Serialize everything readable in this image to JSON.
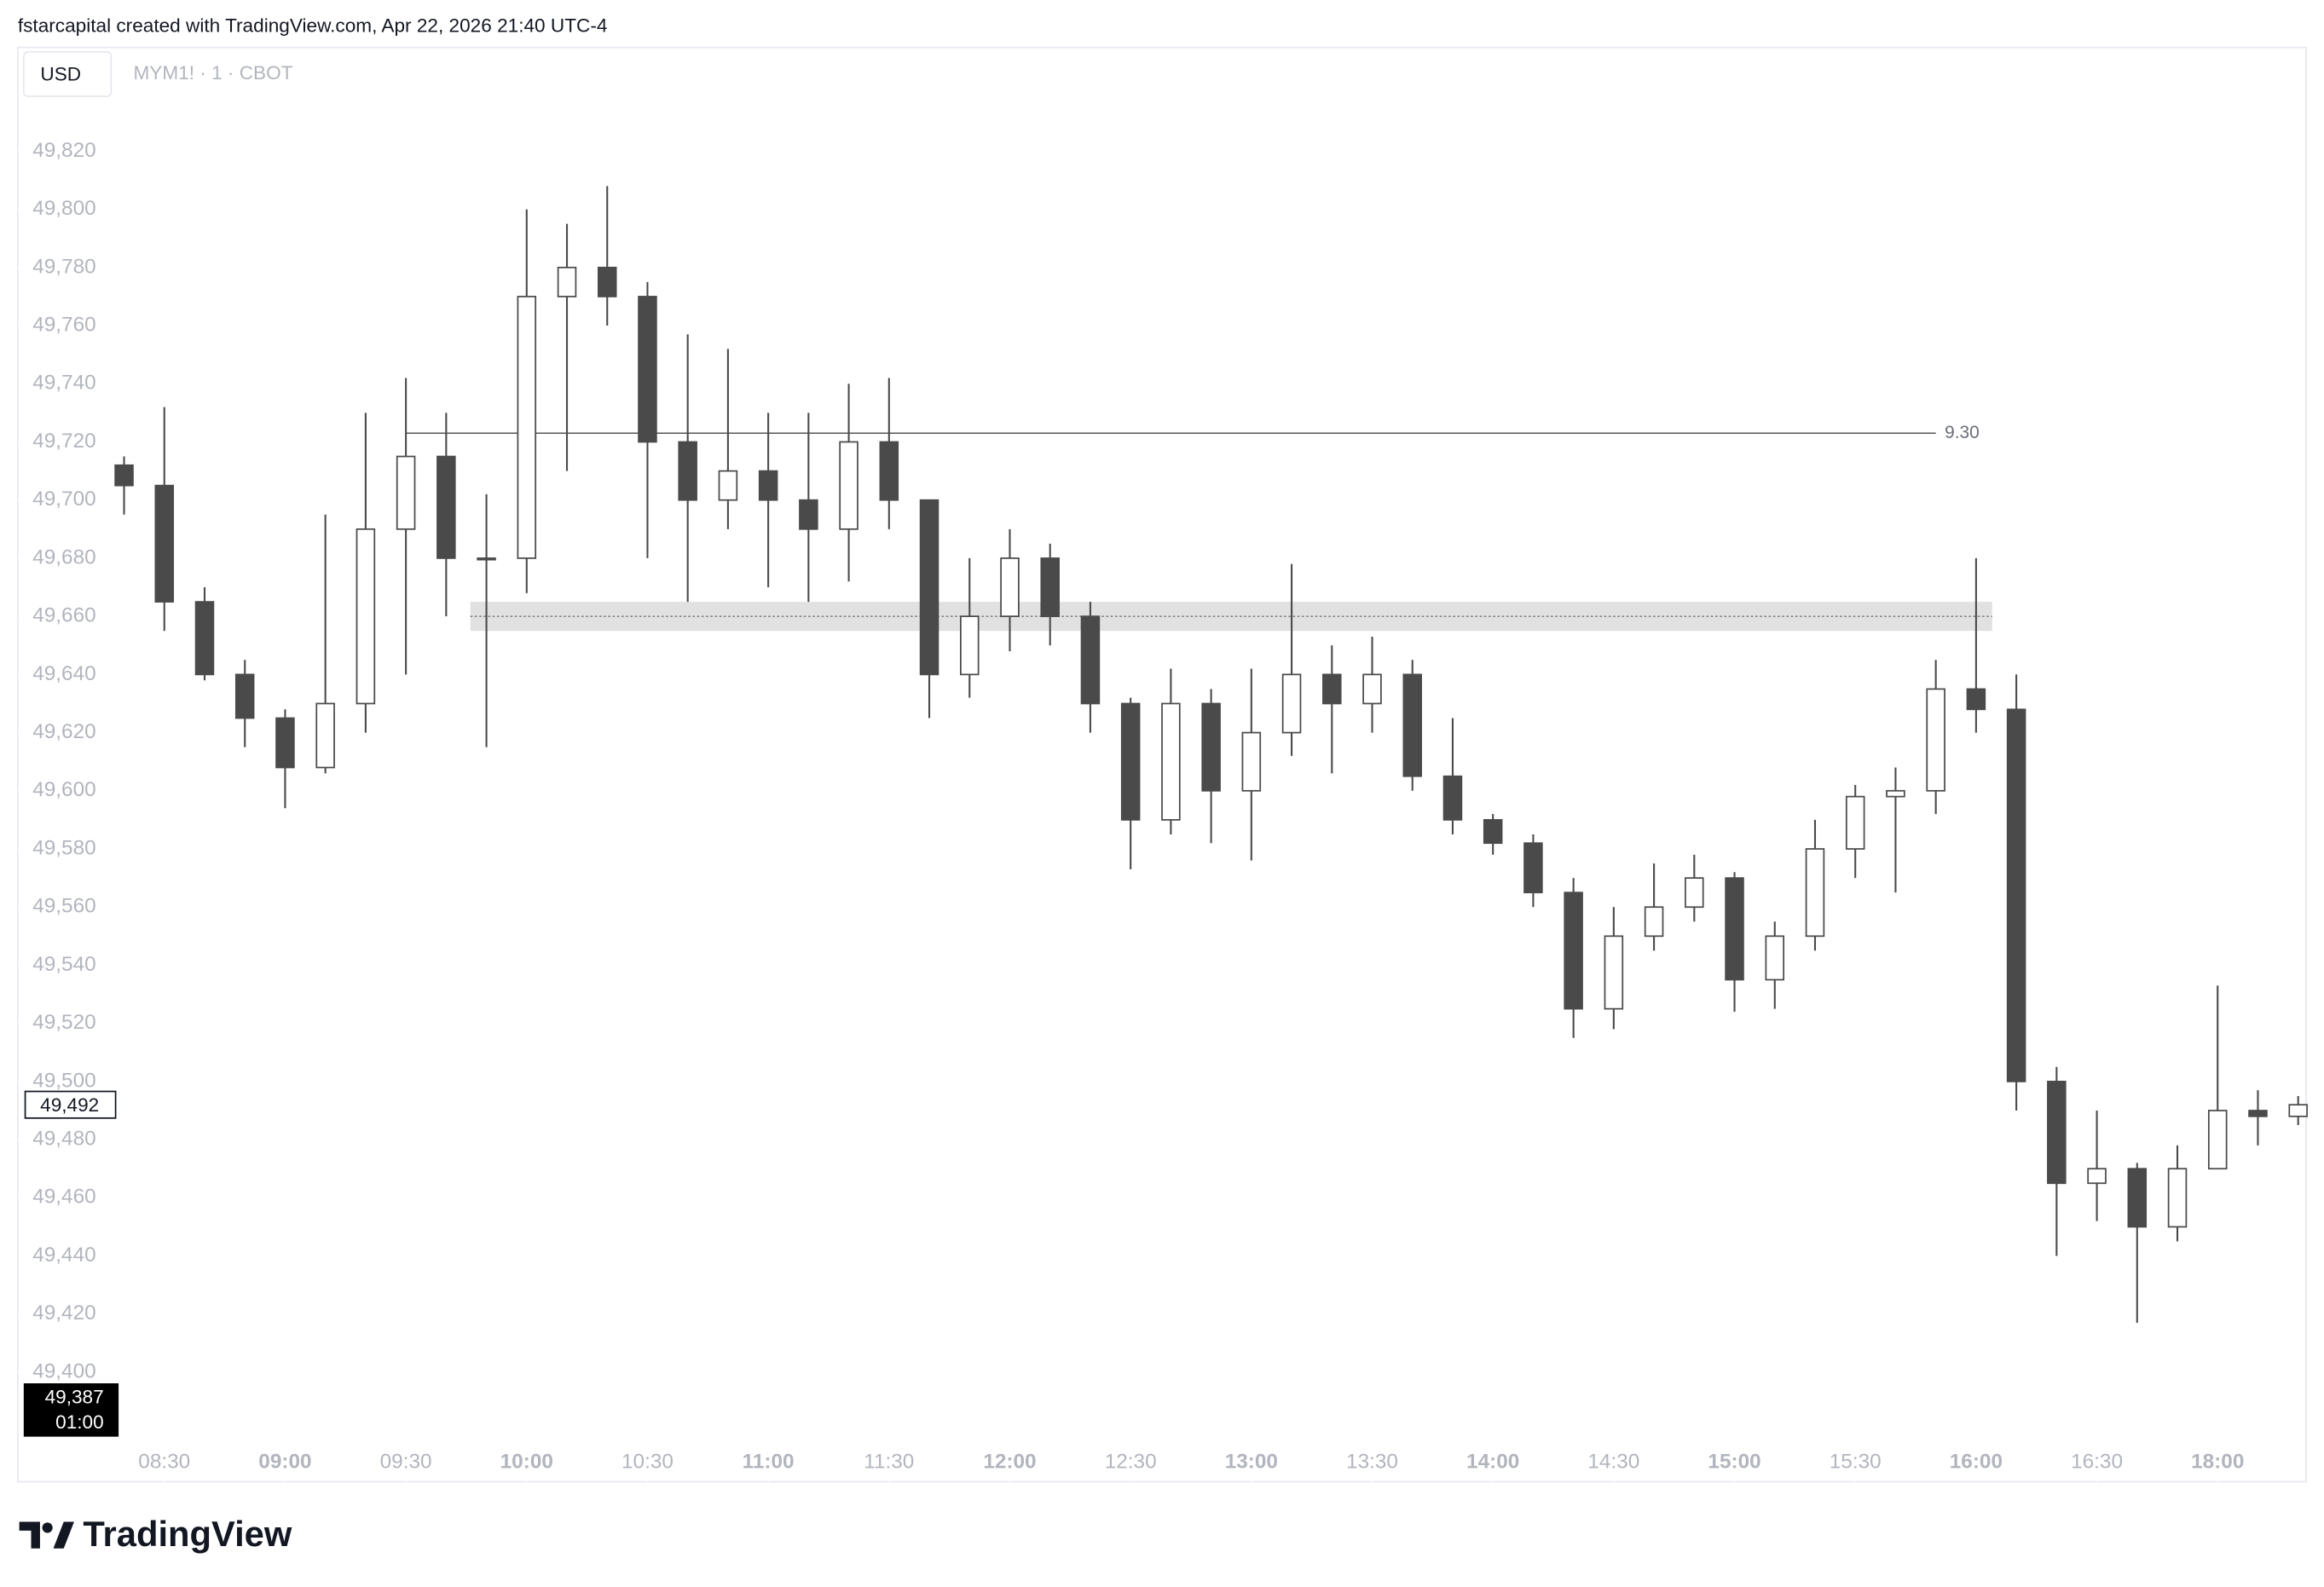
{
  "header": {
    "text": "fstarcapital created with TradingView.com, Apr 22, 2026 21:40 UTC-4"
  },
  "footer": {
    "brand": "TradingView"
  },
  "chart_data": {
    "type": "candlestick",
    "currency": "USD",
    "symbol": "MYM1! · 1 · CBOT",
    "x": [
      0,
      1,
      2,
      3,
      4,
      5,
      6,
      7,
      8,
      9,
      10,
      11,
      12,
      13,
      14,
      15,
      16,
      17,
      18,
      19,
      20,
      21,
      22,
      23,
      24,
      25,
      26,
      27,
      28,
      29,
      30,
      31,
      32,
      33,
      34,
      35,
      36,
      37,
      38,
      39,
      40,
      41,
      42,
      43,
      44,
      45,
      46,
      47,
      48,
      49,
      50,
      51,
      52,
      53,
      54
    ],
    "series": [
      {
        "color": "#4a4a4a",
        "open": [
          49712,
          49705,
          49665,
          49640,
          49625,
          49608,
          49630,
          49690,
          49715,
          49680,
          49680,
          49770,
          49780,
          49770,
          49720,
          49700,
          49710,
          49700,
          49690,
          49720,
          49700,
          49640,
          49660,
          49680,
          49660,
          49630,
          49590,
          49630,
          49600,
          49620,
          49640,
          49630,
          49640,
          49605,
          49590,
          49582,
          49565,
          49525,
          49550,
          49560,
          49570,
          49535,
          49550,
          49580,
          49598,
          49600,
          49635,
          49628,
          49500,
          49465,
          49470,
          49450,
          49470,
          49490,
          49488
        ],
        "high": [
          49715,
          49732,
          49670,
          49645,
          49628,
          49695,
          49730,
          49742,
          49730,
          49702,
          49800,
          49795,
          49808,
          49775,
          49757,
          49752,
          49730,
          49730,
          49740,
          49742,
          49700,
          49680,
          49690,
          49685,
          49665,
          49632,
          49642,
          49635,
          49642,
          49678,
          49650,
          49653,
          49645,
          49625,
          49592,
          49585,
          49570,
          49560,
          49575,
          49578,
          49572,
          49555,
          49590,
          49602,
          49608,
          49645,
          49680,
          49640,
          49505,
          49490,
          49472,
          49478,
          49533,
          49497,
          49495
        ],
        "low": [
          49695,
          49655,
          49638,
          49615,
          49594,
          49606,
          49620,
          49640,
          49660,
          49615,
          49668,
          49710,
          49760,
          49680,
          49665,
          49690,
          49670,
          49665,
          49672,
          49690,
          49625,
          49632,
          49648,
          49650,
          49620,
          49573,
          49585,
          49582,
          49576,
          49612,
          49606,
          49620,
          49600,
          49585,
          49578,
          49560,
          49515,
          49518,
          49545,
          49555,
          49524,
          49525,
          49545,
          49570,
          49565,
          49592,
          49620,
          49490,
          49440,
          49452,
          49417,
          49445,
          49470,
          49478,
          49485
        ],
        "close": [
          49705,
          49665,
          49640,
          49625,
          49608,
          49630,
          49690,
          49715,
          49680,
          49680,
          49770,
          49780,
          49770,
          49720,
          49700,
          49710,
          49700,
          49690,
          49720,
          49700,
          49640,
          49660,
          49680,
          49660,
          49630,
          49590,
          49630,
          49600,
          49620,
          49640,
          49630,
          49640,
          49605,
          49590,
          49582,
          49565,
          49525,
          49550,
          49560,
          49570,
          49535,
          49550,
          49580,
          49598,
          49600,
          49635,
          49628,
          49500,
          49465,
          49470,
          49450,
          49470,
          49490,
          49488,
          49492
        ]
      }
    ],
    "xlim": [
      -2.64,
      54.2
    ],
    "xticks": [
      {
        "value": 1,
        "label": "08:30"
      },
      {
        "value": 4,
        "label": "09:00"
      },
      {
        "value": 7,
        "label": "09:30"
      },
      {
        "value": 10,
        "label": "10:00"
      },
      {
        "value": 13,
        "label": "10:30"
      },
      {
        "value": 16,
        "label": "11:00"
      },
      {
        "value": 19,
        "label": "11:30"
      },
      {
        "value": 22,
        "label": "12:00"
      },
      {
        "value": 25,
        "label": "12:30"
      },
      {
        "value": 28,
        "label": "13:00"
      },
      {
        "value": 31,
        "label": "13:30"
      },
      {
        "value": 34,
        "label": "14:00"
      },
      {
        "value": 37,
        "label": "14:30"
      },
      {
        "value": 40,
        "label": "15:00"
      },
      {
        "value": 43,
        "label": "15:30"
      },
      {
        "value": 46,
        "label": "16:00"
      },
      {
        "value": 49,
        "label": "16:30"
      },
      {
        "value": 52,
        "label": "18:00"
      }
    ],
    "ylim": [
      49375,
      49856
    ],
    "yticks": [
      {
        "value": 49400,
        "label": "49,400"
      },
      {
        "value": 49420,
        "label": "49,420"
      },
      {
        "value": 49440,
        "label": "49,440"
      },
      {
        "value": 49460,
        "label": "49,460"
      },
      {
        "value": 49480,
        "label": "49,480"
      },
      {
        "value": 49500,
        "label": "49,500"
      },
      {
        "value": 49520,
        "label": "49,520"
      },
      {
        "value": 49540,
        "label": "49,540"
      },
      {
        "value": 49560,
        "label": "49,560"
      },
      {
        "value": 49580,
        "label": "49,580"
      },
      {
        "value": 49600,
        "label": "49,600"
      },
      {
        "value": 49620,
        "label": "49,620"
      },
      {
        "value": 49640,
        "label": "49,640"
      },
      {
        "value": 49660,
        "label": "49,660"
      },
      {
        "value": 49680,
        "label": "49,680"
      },
      {
        "value": 49700,
        "label": "49,700"
      },
      {
        "value": 49720,
        "label": "49,720"
      },
      {
        "value": 49740,
        "label": "49,740"
      },
      {
        "value": 49760,
        "label": "49,760"
      },
      {
        "value": 49780,
        "label": "49,780"
      },
      {
        "value": 49800,
        "label": "49,800"
      },
      {
        "value": 49820,
        "label": "49,820"
      }
    ],
    "last_price": {
      "value": 49492,
      "label": "49,492"
    },
    "crosshair": {
      "price": {
        "value": 49387,
        "label": "49,387"
      },
      "time": "01:00"
    },
    "level": {
      "label": "9.30",
      "value": 49723,
      "x_start": 7,
      "x_end": 45
    },
    "zone": {
      "low": 49655,
      "high": 49665,
      "mid": 49660,
      "x_start": 8.6,
      "x_end": 46.4
    }
  }
}
